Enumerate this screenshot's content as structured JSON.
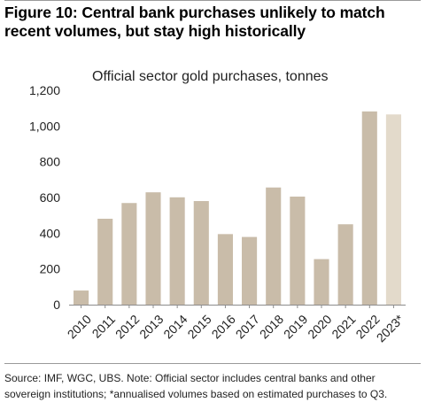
{
  "figure": {
    "title": "Figure 10: Central bank purchases unlikely to match recent volumes, but stay high historically",
    "footnote": "Source: IMF, WGC, UBS. Note: Official sector includes central banks and other sovereign institutions; *annualised volumes based on estimated purchases to Q3."
  },
  "chart_data": {
    "type": "bar",
    "title": "Official sector gold purchases, tonnes",
    "xlabel": "",
    "ylabel": "",
    "categories": [
      "2010",
      "2011",
      "2012",
      "2013",
      "2014",
      "2015",
      "2016",
      "2017",
      "2018",
      "2019",
      "2020",
      "2021",
      "2022",
      "2023*"
    ],
    "values": [
      79,
      481,
      569,
      629,
      601,
      580,
      395,
      379,
      656,
      605,
      255,
      450,
      1082,
      1065
    ],
    "ylim": [
      0,
      1200
    ],
    "yticks": [
      0,
      200,
      400,
      600,
      800,
      1000,
      1200
    ],
    "ytick_labels": [
      "0",
      "200",
      "400",
      "600",
      "800",
      "1,000",
      "1,200"
    ],
    "grid": false,
    "legend": "none",
    "colors": {
      "bar": "#C9BCA9",
      "estimate_bar": "#E3DACB",
      "axis": "#8c8c8c"
    },
    "estimate_index": 13
  }
}
